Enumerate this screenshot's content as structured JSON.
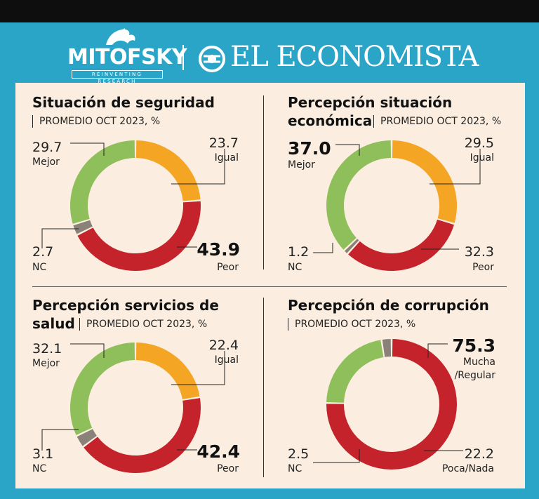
{
  "brand": {
    "mitofsky": "MITOFSKY",
    "mitofsky_tagline": "REINVENTING RESEARCH",
    "economista": "EL ECONOMISTA"
  },
  "colors": {
    "frame": "#2aa5c8",
    "panel": "#fbeee0",
    "mejor": "#8fbf5b",
    "igual": "#f5a524",
    "peor": "#c4232b",
    "nc": "#8a8178"
  },
  "chart_data": [
    {
      "type": "pie",
      "title": "Situación de seguridad",
      "subtitle": "PROMEDIO OCT 2023, %",
      "slices": [
        {
          "label": "Igual",
          "value": 23.7,
          "color": "#f5a524",
          "value_text": "23.7"
        },
        {
          "label": "Peor",
          "value": 43.9,
          "color": "#c4232b",
          "value_text": "43.9"
        },
        {
          "label": "NC",
          "value": 2.7,
          "color": "#8a8178",
          "value_text": "2.7"
        },
        {
          "label": "Mejor",
          "value": 29.7,
          "color": "#8fbf5b",
          "value_text": "29.7"
        }
      ]
    },
    {
      "type": "pie",
      "title_lines": [
        "Percepción situación",
        "económica"
      ],
      "subtitle": "PROMEDIO OCT 2023, %",
      "slices": [
        {
          "label": "Igual",
          "value": 29.5,
          "color": "#f5a524",
          "value_text": "29.5"
        },
        {
          "label": "Peor",
          "value": 32.3,
          "color": "#c4232b",
          "value_text": "32.3"
        },
        {
          "label": "NC",
          "value": 1.2,
          "color": "#8a8178",
          "value_text": "1.2"
        },
        {
          "label": "Mejor",
          "value": 37.0,
          "color": "#8fbf5b",
          "value_text": "37.0"
        }
      ]
    },
    {
      "type": "pie",
      "title_lines": [
        "Percepción servicios de",
        "salud"
      ],
      "subtitle": "PROMEDIO OCT 2023, %",
      "slices": [
        {
          "label": "Igual",
          "value": 22.4,
          "color": "#f5a524",
          "value_text": "22.4"
        },
        {
          "label": "Peor",
          "value": 42.4,
          "color": "#c4232b",
          "value_text": "42.4"
        },
        {
          "label": "NC",
          "value": 3.1,
          "color": "#8a8178",
          "value_text": "3.1"
        },
        {
          "label": "Mejor",
          "value": 32.1,
          "color": "#8fbf5b",
          "value_text": "32.1"
        }
      ]
    },
    {
      "type": "pie",
      "title": "Percepción de corrupción",
      "subtitle": "PROMEDIO OCT 2023, %",
      "slices": [
        {
          "label": "Mucha /Regular",
          "label_lines": [
            "Mucha",
            "/Regular"
          ],
          "value": 75.3,
          "color": "#c4232b",
          "value_text": "75.3"
        },
        {
          "label": "Poca/Nada",
          "value": 22.2,
          "color": "#8fbf5b",
          "value_text": "22.2"
        },
        {
          "label": "NC",
          "value": 2.5,
          "color": "#8a8178",
          "value_text": "2.5"
        }
      ]
    }
  ]
}
